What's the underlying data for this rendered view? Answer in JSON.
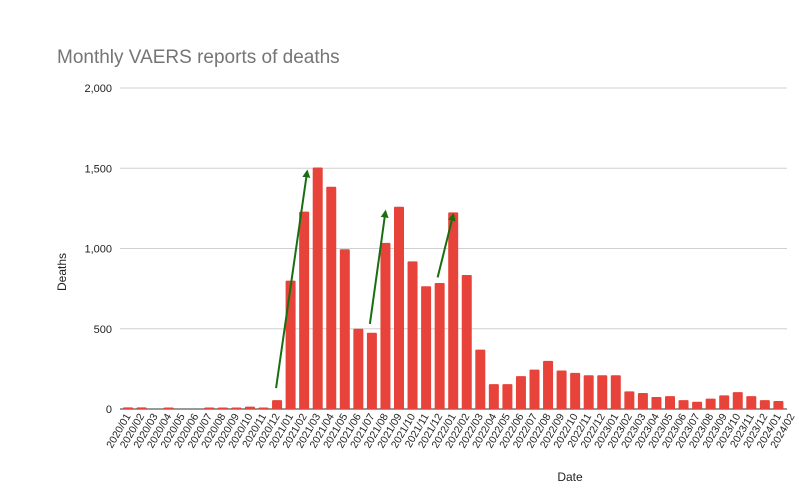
{
  "chart_data": {
    "type": "bar",
    "title": "Monthly VAERS reports of deaths",
    "xlabel": "Date",
    "ylabel": "Deaths",
    "ylim": [
      0,
      2000
    ],
    "yticks": [
      0,
      500,
      1000,
      1500,
      2000
    ],
    "ytick_labels": [
      "0",
      "500",
      "1,000",
      "1,500",
      "2,000"
    ],
    "grid": true,
    "bar_color": "#e8433a",
    "annotation_color": "#1a6e12",
    "categories": [
      "2020/01",
      "2020/02",
      "2020/03",
      "2020/04",
      "2020/05",
      "2020/06",
      "2020/07",
      "2020/08",
      "2020/09",
      "2020/10",
      "2020/11",
      "2020/12",
      "2021/01",
      "2021/02",
      "2021/03",
      "2021/04",
      "2021/05",
      "2021/06",
      "2021/07",
      "2021/08",
      "2021/09",
      "2021/10",
      "2021/11",
      "2021/12",
      "2022/01",
      "2022/02",
      "2022/03",
      "2022/04",
      "2022/05",
      "2022/06",
      "2022/07",
      "2022/08",
      "2022/09",
      "2022/10",
      "2022/11",
      "2022/12",
      "2023/01",
      "2023/02",
      "2023/03",
      "2023/04",
      "2023/05",
      "2023/06",
      "2023/07",
      "2023/08",
      "2023/09",
      "2023/10",
      "2023/11",
      "2023/12",
      "2024/01"
    ],
    "extra_tick_label": "2024/02",
    "values": [
      10,
      10,
      0,
      5,
      0,
      0,
      5,
      5,
      5,
      15,
      5,
      55,
      800,
      1230,
      1505,
      1385,
      995,
      500,
      475,
      1035,
      1260,
      920,
      765,
      785,
      1225,
      835,
      370,
      155,
      155,
      205,
      245,
      300,
      240,
      225,
      210,
      210,
      210,
      110,
      100,
      75,
      80,
      55,
      45,
      65,
      85,
      105,
      80,
      55,
      50
    ],
    "annotations": [
      {
        "type": "arrow",
        "from_category": "2020/12",
        "to_category": "2021/02",
        "description_value_from": 130,
        "description_value_to": 1480
      },
      {
        "type": "arrow",
        "from_category": "2021/07",
        "to_category": "2021/08",
        "description_value_from": 530,
        "description_value_to": 1230
      },
      {
        "type": "arrow",
        "from_category": "2021/12",
        "to_category": "2022/01",
        "description_value_from": 820,
        "description_value_to": 1210
      }
    ]
  }
}
